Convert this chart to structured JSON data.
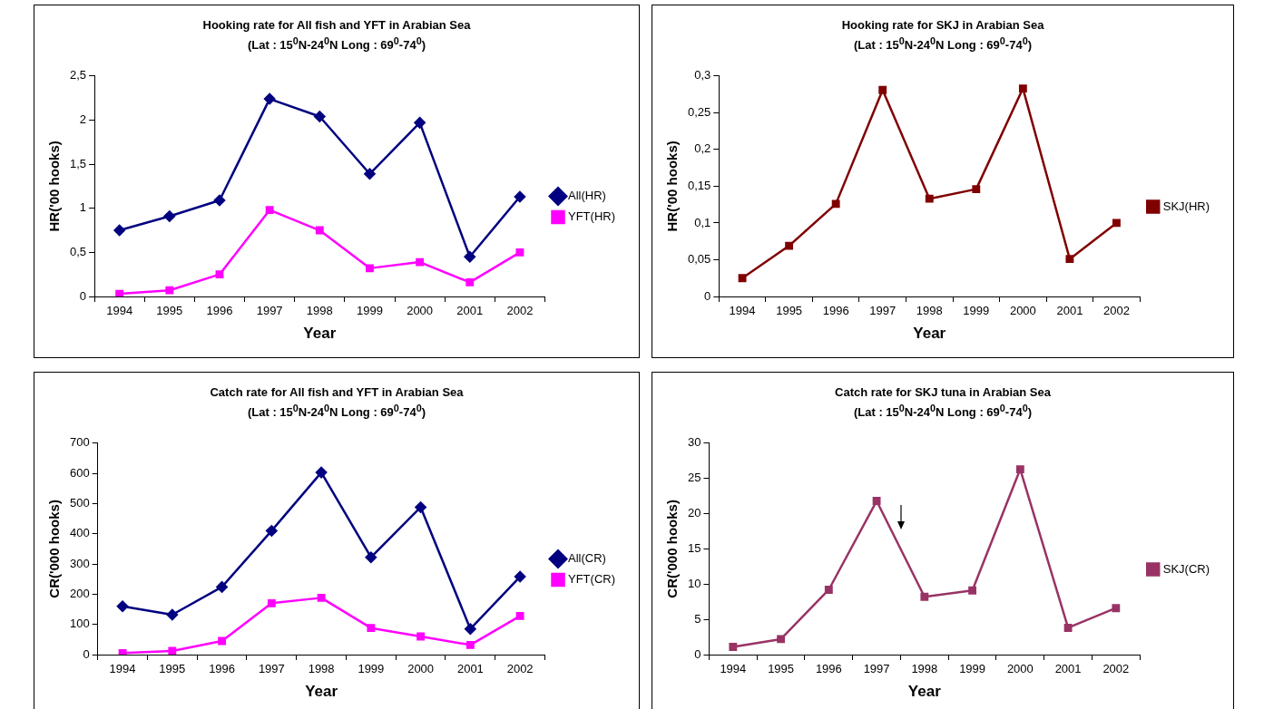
{
  "chart_data": [
    {
      "type": "line",
      "title": "Hooking rate for All fish and YFT in Arabian Sea",
      "subtitle": "(Lat : 15$^{0}$N-24$^{0}$N   Long : 69$^{0}$-74$^{0}$)",
      "xlabel": "Year",
      "ylabel": "HR('00 hooks)",
      "categories": [
        "1994",
        "1995",
        "1996",
        "1997",
        "1998",
        "1999",
        "2000",
        "2001",
        "2002"
      ],
      "series": [
        {
          "name": "All(HR)",
          "color": "#000080",
          "marker": "diamond",
          "values": [
            0.75,
            0.91,
            1.09,
            2.24,
            2.04,
            1.39,
            1.97,
            0.45,
            1.13
          ]
        },
        {
          "name": "YFT(HR)",
          "color": "#ff00ff",
          "marker": "square",
          "values": [
            0.03,
            0.07,
            0.25,
            0.98,
            0.75,
            0.32,
            0.39,
            0.16,
            0.5
          ]
        }
      ],
      "ylim": [
        0,
        2.5
      ],
      "yticks": [
        0,
        {
          "value": 0.5,
          "label": "0,5"
        },
        1,
        {
          "value": 1.5,
          "label": "1,5"
        },
        2,
        {
          "value": 2.5,
          "label": "2,5"
        }
      ],
      "grid": false,
      "legend": "right"
    },
    {
      "type": "line",
      "title": "Hooking rate for SKJ in Arabian Sea",
      "subtitle": "(Lat : 15$^{0}$N-24$^{0}$N   Long : 69$^{0}$-74$^{0}$)",
      "xlabel": "Year",
      "ylabel": "HR('00 hooks)",
      "categories": [
        "1994",
        "1995",
        "1996",
        "1997",
        "1998",
        "1999",
        "2000",
        "2001",
        "2002"
      ],
      "series": [
        {
          "name": "SKJ(HR)",
          "color": "#800000",
          "marker": "square",
          "values": [
            0.025,
            0.069,
            0.126,
            0.281,
            0.133,
            0.146,
            0.283,
            0.051,
            0.1
          ]
        }
      ],
      "ylim": [
        0,
        0.3
      ],
      "yticks": [
        0,
        {
          "value": 0.05,
          "label": "0,05"
        },
        {
          "value": 0.1,
          "label": "0,1"
        },
        {
          "value": 0.15,
          "label": "0,15"
        },
        {
          "value": 0.2,
          "label": "0,2"
        },
        {
          "value": 0.25,
          "label": "0,25"
        },
        {
          "value": 0.3,
          "label": "0,3"
        }
      ],
      "grid": false,
      "legend": "right"
    },
    {
      "type": "line",
      "title": "Catch rate for All fish and YFT in Arabian Sea",
      "subtitle": "(Lat : 15$^{0}$N-24$^{0}$N   Long : 69$^{0}$-74$^{0}$)",
      "xlabel": "Year",
      "ylabel": "CR('000 hooks)",
      "categories": [
        "1994",
        "1995",
        "1996",
        "1997",
        "1998",
        "1999",
        "2000",
        "2001",
        "2002"
      ],
      "series": [
        {
          "name": "All(CR)",
          "color": "#000080",
          "marker": "diamond",
          "values": [
            160,
            132,
            224,
            410,
            603,
            322,
            488,
            85,
            258
          ]
        },
        {
          "name": "YFT(CR)",
          "color": "#ff00ff",
          "marker": "square",
          "values": [
            5,
            12,
            45,
            170,
            188,
            88,
            60,
            32,
            128
          ]
        }
      ],
      "ylim": [
        0,
        700
      ],
      "yticks": [
        0,
        100,
        200,
        300,
        400,
        500,
        600,
        700
      ],
      "grid": false,
      "legend": "right"
    },
    {
      "type": "line",
      "title": "Catch rate for SKJ tuna in Arabian Sea",
      "subtitle": "(Lat : 15$^{0}$N-24$^{0}$N   Long : 69$^{0}$-74$^{0}$)",
      "xlabel": "Year",
      "ylabel": "CR('000 hooks)",
      "categories": [
        "1994",
        "1995",
        "1996",
        "1997",
        "1998",
        "1999",
        "2000",
        "2001",
        "2002"
      ],
      "series": [
        {
          "name": "SKJ(CR)",
          "color": "#993366",
          "marker": "square",
          "values": [
            1.1,
            2.2,
            9.2,
            21.8,
            8.2,
            9.1,
            26.3,
            3.8,
            6.6
          ]
        }
      ],
      "ylim": [
        0,
        30
      ],
      "yticks": [
        0,
        5,
        10,
        15,
        20,
        25,
        30
      ],
      "grid": false,
      "legend": "right"
    }
  ]
}
